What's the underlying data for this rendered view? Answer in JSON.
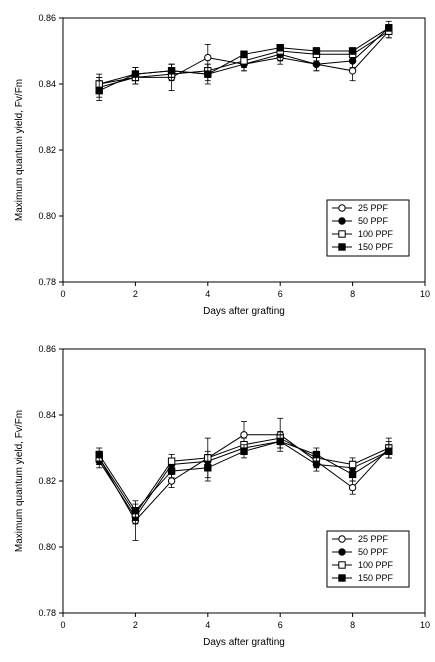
{
  "chart_data": [
    {
      "type": "line",
      "xlabel": "Days after grafting",
      "ylabel": "Maximum quantum yield, Fv/Fm",
      "xlim": [
        0,
        10
      ],
      "ylim": [
        0.78,
        0.86
      ],
      "xticks": [
        "0",
        "2",
        "4",
        "6",
        "8",
        "10"
      ],
      "yticks": [
        "0.78",
        "0.80",
        "0.82",
        "0.84",
        "0.86"
      ],
      "grid": false,
      "legend_position": "bottom-right",
      "x": [
        1,
        2,
        3,
        4,
        5,
        6,
        7,
        8,
        9
      ],
      "series": [
        {
          "name": "25 PPF",
          "marker": "open-circle",
          "values": [
            0.839,
            0.842,
            0.842,
            0.848,
            0.846,
            0.848,
            0.846,
            0.844,
            0.856
          ],
          "errors": [
            0.003,
            0.002,
            0.004,
            0.004,
            0.002,
            0.002,
            0.002,
            0.003,
            0.002
          ]
        },
        {
          "name": "50 PPF",
          "marker": "filled-circle",
          "values": [
            0.84,
            0.843,
            0.844,
            0.843,
            0.846,
            0.849,
            0.846,
            0.847,
            0.857
          ],
          "errors": [
            0.003,
            0.002,
            0.002,
            0.002,
            0.002,
            0.002,
            0.002,
            0.002,
            0.002
          ]
        },
        {
          "name": "100 PPF",
          "marker": "open-square",
          "values": [
            0.84,
            0.842,
            0.843,
            0.844,
            0.847,
            0.85,
            0.849,
            0.849,
            0.856
          ],
          "errors": [
            0.002,
            0.002,
            0.002,
            0.002,
            0.002,
            0.002,
            0.002,
            0.002,
            0.002
          ]
        },
        {
          "name": "150 PPF",
          "marker": "filled-square",
          "values": [
            0.838,
            0.843,
            0.844,
            0.843,
            0.849,
            0.851,
            0.85,
            0.85,
            0.857
          ],
          "errors": [
            0.003,
            0.002,
            0.002,
            0.003,
            0.001,
            0.001,
            0.001,
            0.001,
            0.001
          ]
        }
      ]
    },
    {
      "type": "line",
      "xlabel": "Days after grafting",
      "ylabel": "Maximum quantum yield, Fv/Fm",
      "xlim": [
        0,
        10
      ],
      "ylim": [
        0.78,
        0.86
      ],
      "xticks": [
        "0",
        "2",
        "4",
        "6",
        "8",
        "10"
      ],
      "yticks": [
        "0.78",
        "0.80",
        "0.82",
        "0.84",
        "0.86"
      ],
      "grid": false,
      "legend_position": "bottom-right",
      "x": [
        1,
        2,
        3,
        4,
        5,
        6,
        7,
        8,
        9
      ],
      "series": [
        {
          "name": "25 PPF",
          "marker": "open-circle",
          "values": [
            0.827,
            0.808,
            0.82,
            0.827,
            0.834,
            0.834,
            0.826,
            0.818,
            0.83
          ],
          "errors": [
            0.002,
            0.006,
            0.002,
            0.006,
            0.004,
            0.005,
            0.002,
            0.002,
            0.003
          ]
        },
        {
          "name": "50 PPF",
          "marker": "filled-circle",
          "values": [
            0.826,
            0.809,
            0.825,
            0.826,
            0.83,
            0.832,
            0.825,
            0.824,
            0.829
          ],
          "errors": [
            0.002,
            0.002,
            0.002,
            0.002,
            0.002,
            0.002,
            0.002,
            0.002,
            0.002
          ]
        },
        {
          "name": "100 PPF",
          "marker": "open-square",
          "values": [
            0.827,
            0.81,
            0.826,
            0.827,
            0.831,
            0.833,
            0.827,
            0.825,
            0.83
          ],
          "errors": [
            0.002,
            0.002,
            0.002,
            0.002,
            0.002,
            0.002,
            0.002,
            0.002,
            0.002
          ]
        },
        {
          "name": "150 PPF",
          "marker": "filled-square",
          "values": [
            0.828,
            0.811,
            0.823,
            0.824,
            0.829,
            0.832,
            0.828,
            0.822,
            0.829
          ],
          "errors": [
            0.002,
            0.002,
            0.002,
            0.004,
            0.002,
            0.002,
            0.002,
            0.002,
            0.002
          ]
        }
      ]
    }
  ]
}
